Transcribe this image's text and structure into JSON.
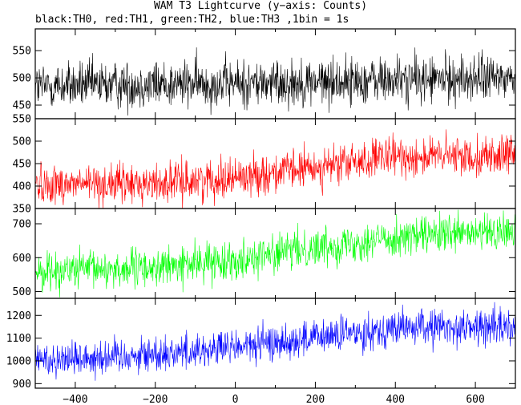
{
  "title": "WAM T3 Lightcurve (y−axis: Counts)",
  "subtitle": "black:TH0, red:TH1, green:TH2, blue:TH3 ,1bin = 1s",
  "chart_data": {
    "type": "line",
    "x_range": [
      -500,
      700
    ],
    "x_ticks": [
      -400,
      -200,
      0,
      200,
      400,
      600
    ],
    "x_tick_labels": [
      "−400",
      "−200",
      "0",
      "200",
      "400",
      "600"
    ],
    "panels": [
      {
        "name": "TH0",
        "color": "#000000",
        "ylim": [
          425,
          590
        ],
        "yticks": [
          450,
          500,
          550
        ],
        "trend": [
          [
            -500,
            485
          ],
          [
            -200,
            488
          ],
          [
            0,
            490
          ],
          [
            200,
            492
          ],
          [
            400,
            496
          ],
          [
            700,
            500
          ]
        ],
        "noise": 22
      },
      {
        "name": "TH1",
        "color": "#ff0000",
        "ylim": [
          350,
          550
        ],
        "yticks": [
          350,
          400,
          450,
          500,
          550
        ],
        "trend": [
          [
            -500,
            405
          ],
          [
            -200,
            405
          ],
          [
            0,
            420
          ],
          [
            200,
            440
          ],
          [
            400,
            465
          ],
          [
            700,
            468
          ]
        ],
        "noise": 22
      },
      {
        "name": "TH2",
        "color": "#00ff00",
        "ylim": [
          480,
          745
        ],
        "yticks": [
          500,
          600,
          700
        ],
        "trend": [
          [
            -500,
            560
          ],
          [
            -200,
            570
          ],
          [
            0,
            595
          ],
          [
            200,
            630
          ],
          [
            400,
            660
          ],
          [
            700,
            675
          ]
        ],
        "noise": 28
      },
      {
        "name": "TH3",
        "color": "#0000ff",
        "ylim": [
          880,
          1275
        ],
        "yticks": [
          900,
          1000,
          1100,
          1200
        ],
        "trend": [
          [
            -500,
            1005
          ],
          [
            -200,
            1030
          ],
          [
            0,
            1060
          ],
          [
            200,
            1100
          ],
          [
            400,
            1145
          ],
          [
            700,
            1150
          ]
        ],
        "noise": 40
      }
    ]
  }
}
